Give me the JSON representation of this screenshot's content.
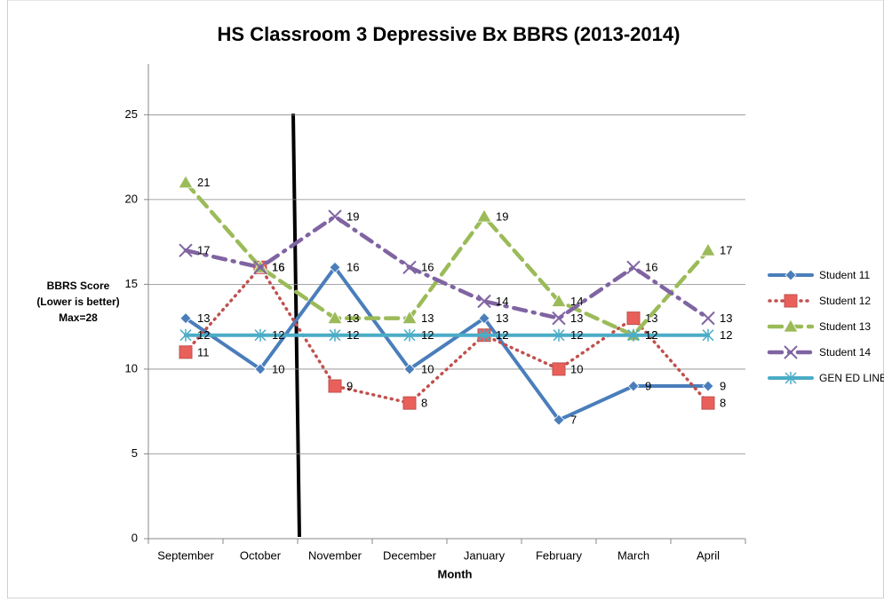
{
  "chart_data": {
    "type": "line",
    "title": "HS Classroom 3 Depressive Bx BBRS (2013-2014)",
    "x_label": "Month",
    "y_label": [
      "BBRS Score",
      "(Lower is better)",
      "Max=28"
    ],
    "categories": [
      "September",
      "October",
      "November",
      "December",
      "January",
      "February",
      "March",
      "April"
    ],
    "ylim": [
      0,
      28
    ],
    "yticks": [
      0,
      5,
      10,
      15,
      20,
      25
    ],
    "grid": true,
    "legend": "right",
    "series": [
      {
        "name": "Student 11",
        "color": "#4a7ebb",
        "marker": "diamond",
        "line_style": "solid",
        "values": [
          13,
          10,
          16,
          10,
          13,
          7,
          9,
          9
        ]
      },
      {
        "name": "Student 12",
        "color": "#c0504d",
        "marker": "square",
        "line_style": "dotted",
        "values": [
          11,
          16,
          9,
          8,
          12,
          10,
          13,
          8
        ]
      },
      {
        "name": "Student 13",
        "color": "#9bbb59",
        "marker": "triangle",
        "line_style": "dashed",
        "values": [
          21,
          16,
          13,
          13,
          19,
          14,
          12,
          17
        ]
      },
      {
        "name": "Student 14",
        "color": "#8064a2",
        "marker": "x",
        "line_style": "dashdot",
        "values": [
          17,
          16,
          19,
          16,
          14,
          13,
          16,
          13
        ]
      },
      {
        "name": "GEN ED LINE",
        "color": "#4bacc6",
        "marker": "asterisk",
        "line_style": "solid",
        "values": [
          12,
          12,
          12,
          12,
          12,
          12,
          12,
          12
        ]
      }
    ]
  }
}
